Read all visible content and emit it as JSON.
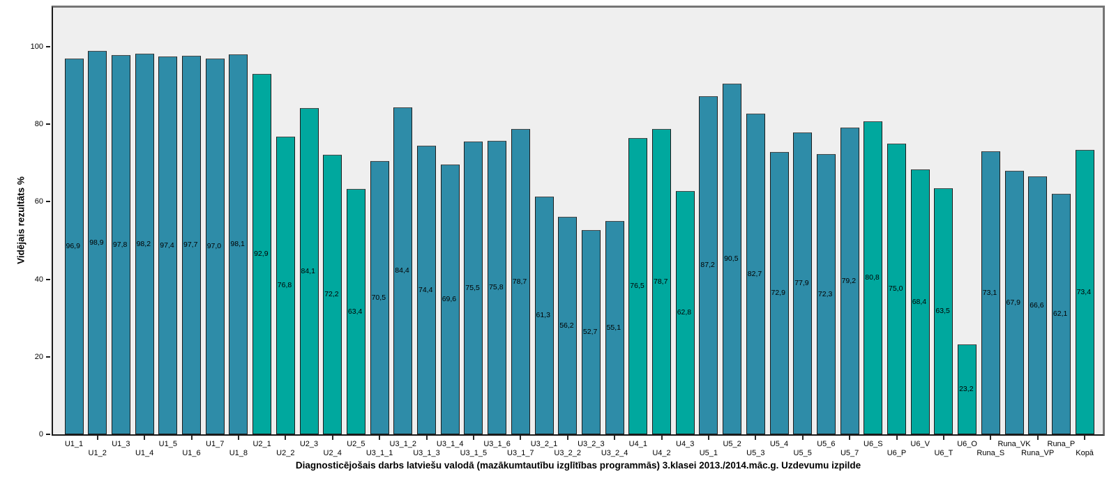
{
  "chart_data": {
    "type": "bar",
    "xlabel": "Diagnosticējošais darbs latviešu valodā (mazākumtautību izglītības programmās) 3.klasei 2013./2014.māc.g. Uzdevumu izpilde",
    "ylabel": "Vidējais rezultāts %",
    "ylim": [
      0,
      111
    ],
    "yticks": [
      0,
      20,
      40,
      60,
      80,
      100
    ],
    "grid": false,
    "legend_position": "none",
    "value_labels": "inside bars, comma decimal, one decimal place",
    "panel_background": "#EFEFEF",
    "series_colors": {
      "teal_dark": "#2E8CA8",
      "teal_bright": "#00A89E"
    },
    "categories": [
      "U1_1",
      "U1_2",
      "U1_3",
      "U1_4",
      "U1_5",
      "U1_6",
      "U1_7",
      "U1_8",
      "U2_1",
      "U2_2",
      "U2_3",
      "U2_4",
      "U2_5",
      "U3_1_1",
      "U3_1_2",
      "U3_1_3",
      "U3_1_4",
      "U3_1_5",
      "U3_1_6",
      "U3_1_7",
      "U3_2_1",
      "U3_2_2",
      "U3_2_3",
      "U3_2_4",
      "U4_1",
      "U4_2",
      "U4_3",
      "U5_1",
      "U5_2",
      "U5_3",
      "U5_4",
      "U5_5",
      "U5_6",
      "U5_7",
      "U6_S",
      "U6_P",
      "U6_V",
      "U6_T",
      "U6_O",
      "Runa_S",
      "Runa_VK",
      "Runa_VP",
      "Runa_P",
      "Kopā"
    ],
    "values": [
      96.9,
      98.9,
      97.8,
      98.2,
      97.4,
      97.7,
      97.0,
      98.1,
      92.9,
      76.8,
      84.1,
      72.2,
      63.4,
      70.5,
      84.4,
      74.4,
      69.6,
      75.5,
      75.8,
      78.7,
      61.3,
      56.2,
      52.7,
      55.1,
      76.5,
      78.7,
      62.8,
      87.2,
      90.5,
      82.7,
      72.9,
      77.9,
      72.3,
      79.2,
      80.8,
      75.0,
      68.4,
      63.5,
      23.2,
      73.1,
      67.9,
      66.6,
      62.1,
      73.4
    ],
    "bar_color_keys": [
      "teal_dark",
      "teal_dark",
      "teal_dark",
      "teal_dark",
      "teal_dark",
      "teal_dark",
      "teal_dark",
      "teal_dark",
      "teal_bright",
      "teal_bright",
      "teal_bright",
      "teal_bright",
      "teal_bright",
      "teal_dark",
      "teal_dark",
      "teal_dark",
      "teal_dark",
      "teal_dark",
      "teal_dark",
      "teal_dark",
      "teal_dark",
      "teal_dark",
      "teal_dark",
      "teal_dark",
      "teal_bright",
      "teal_bright",
      "teal_bright",
      "teal_dark",
      "teal_dark",
      "teal_dark",
      "teal_dark",
      "teal_dark",
      "teal_dark",
      "teal_dark",
      "teal_bright",
      "teal_bright",
      "teal_bright",
      "teal_bright",
      "teal_bright",
      "teal_dark",
      "teal_dark",
      "teal_dark",
      "teal_dark",
      "teal_bright"
    ]
  }
}
